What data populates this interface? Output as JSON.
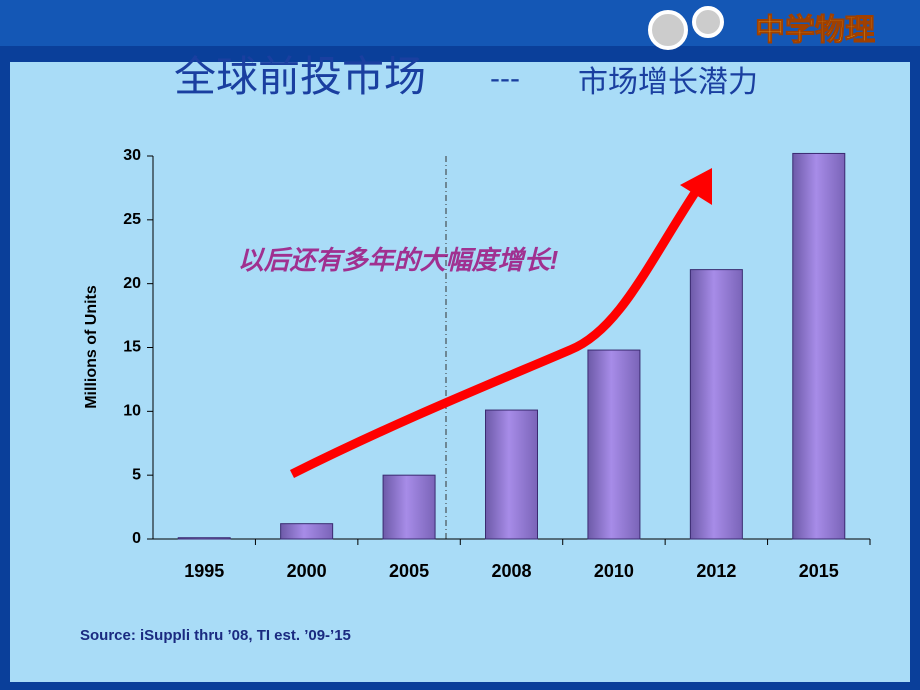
{
  "header": {
    "logo": "中学物理"
  },
  "slide": {
    "title": "全球前投市场",
    "title_sep": "---",
    "subtitle": "市场增长潜力",
    "annotation": "以后还有多年的大幅度增长!",
    "source": "Source: iSuppli thru ’08, TI est. ’09-’15"
  },
  "chart_data": {
    "type": "bar",
    "y_label": "Millions of Units",
    "categories": [
      "1995",
      "2000",
      "2005",
      "2008",
      "2010",
      "2012",
      "2015"
    ],
    "values": [
      0.1,
      1.2,
      5,
      10.1,
      14.8,
      21.1,
      30.2
    ],
    "color": "#a78ce8",
    "ylim": [
      0,
      30
    ],
    "yticks": [
      0,
      5,
      10,
      15,
      20,
      25,
      30
    ],
    "grid": false
  }
}
